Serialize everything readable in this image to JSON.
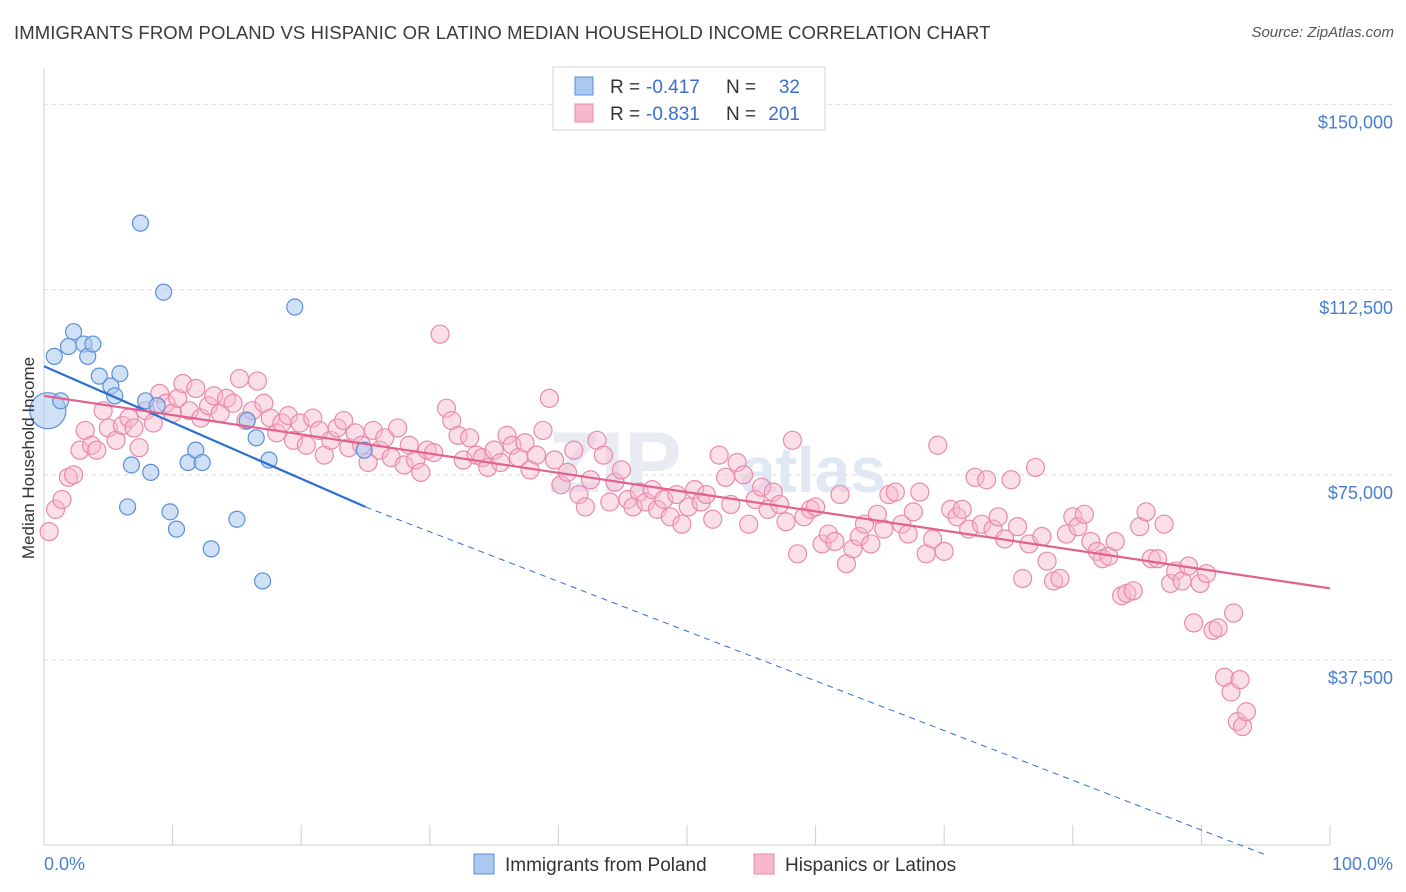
{
  "title": "IMMIGRANTS FROM POLAND VS HISPANIC OR LATINO MEDIAN HOUSEHOLD INCOME CORRELATION CHART",
  "source": "Source: ZipAtlas.com",
  "watermark": {
    "zip": "ZIP",
    "atlas": "atlas"
  },
  "legend_box": {
    "rows": [
      {
        "r_label": "R =",
        "r_value": "-0.417",
        "n_label": "N =",
        "n_value": "32"
      },
      {
        "r_label": "R =",
        "r_value": "-0.831",
        "n_label": "N =",
        "n_value": "201"
      }
    ]
  },
  "bottom_legend": [
    "Immigrants from Poland",
    "Hispanics or Latinos"
  ],
  "colors": {
    "poland_fill": "#aac8f0",
    "poland_stroke": "#5b8fd6",
    "poland_line": "#2a6fd4",
    "hispanic_fill": "#f7b8cc",
    "hispanic_stroke": "#e98aab",
    "hispanic_line": "#e0628f",
    "grid": "#dcdcdc",
    "axis_label": "#4a7fcf"
  },
  "chart_data": {
    "type": "scatter",
    "title": "IMMIGRANTS FROM POLAND VS HISPANIC OR LATINO MEDIAN HOUSEHOLD INCOME CORRELATION CHART",
    "xlabel": "",
    "ylabel": "Median Household Income",
    "xlim": [
      0,
      100
    ],
    "ylim": [
      0,
      155000
    ],
    "x_tick_labels": [
      "0.0%",
      "100.0%"
    ],
    "y_ticks": [
      37500,
      75000,
      112500,
      150000
    ],
    "y_tick_labels": [
      "$37,500",
      "$75,000",
      "$112,500",
      "$150,000"
    ],
    "grid": true,
    "series": [
      {
        "name": "Immigrants from Poland",
        "r": -0.417,
        "n": 32,
        "trend": {
          "x0": 0,
          "y0": 97000,
          "x1": 25,
          "y1": 68500,
          "dash_to_x": 95,
          "dash_to_y": -2000
        },
        "points": [
          [
            0.3,
            88000,
            18
          ],
          [
            0.8,
            99000,
            8
          ],
          [
            1.3,
            90000,
            8
          ],
          [
            1.9,
            101000,
            8
          ],
          [
            2.3,
            104000,
            8
          ],
          [
            3.1,
            101500,
            8
          ],
          [
            3.4,
            99000,
            8
          ],
          [
            3.8,
            101500,
            8
          ],
          [
            4.3,
            95000,
            8
          ],
          [
            5.2,
            93000,
            8
          ],
          [
            5.5,
            91000,
            8
          ],
          [
            5.9,
            95500,
            8
          ],
          [
            6.5,
            68500,
            8
          ],
          [
            6.8,
            77000,
            8
          ],
          [
            7.5,
            126000,
            8
          ],
          [
            7.9,
            90000,
            8
          ],
          [
            8.3,
            75500,
            8
          ],
          [
            8.8,
            89000,
            8
          ],
          [
            9.3,
            112000,
            8
          ],
          [
            9.8,
            67500,
            8
          ],
          [
            10.3,
            64000,
            8
          ],
          [
            11.2,
            77500,
            8
          ],
          [
            11.8,
            80000,
            8
          ],
          [
            12.3,
            77500,
            8
          ],
          [
            13.0,
            60000,
            8
          ],
          [
            15.0,
            66000,
            8
          ],
          [
            15.8,
            86000,
            8
          ],
          [
            16.5,
            82500,
            8
          ],
          [
            17.0,
            53500,
            8
          ],
          [
            17.5,
            78000,
            8
          ],
          [
            19.5,
            109000,
            8
          ],
          [
            24.9,
            80000,
            8
          ]
        ]
      },
      {
        "name": "Hispanics or Latinos",
        "r": -0.831,
        "n": 201,
        "trend": {
          "x0": 0,
          "y0": 91000,
          "x1": 100,
          "y1": 52000
        },
        "points": [
          [
            0.4,
            63500
          ],
          [
            0.9,
            68000
          ],
          [
            1.4,
            70000
          ],
          [
            1.9,
            74500
          ],
          [
            2.3,
            75000
          ],
          [
            2.8,
            80000
          ],
          [
            3.2,
            84000
          ],
          [
            3.7,
            81000
          ],
          [
            4.1,
            80000
          ],
          [
            4.6,
            88000
          ],
          [
            5.0,
            84500
          ],
          [
            5.6,
            82000
          ],
          [
            6.1,
            85000
          ],
          [
            6.6,
            86500
          ],
          [
            7.0,
            84500
          ],
          [
            7.4,
            80500
          ],
          [
            7.9,
            88000
          ],
          [
            8.5,
            85500
          ],
          [
            9.0,
            91500
          ],
          [
            9.5,
            89500
          ],
          [
            10.0,
            87500
          ],
          [
            10.4,
            90500
          ],
          [
            10.8,
            93500
          ],
          [
            11.3,
            88000
          ],
          [
            11.8,
            92500
          ],
          [
            12.2,
            86500
          ],
          [
            12.8,
            89000
          ],
          [
            13.2,
            91000
          ],
          [
            13.7,
            87500
          ],
          [
            14.2,
            90500
          ],
          [
            14.7,
            89500
          ],
          [
            15.2,
            94500
          ],
          [
            15.7,
            86000
          ],
          [
            16.2,
            88000
          ],
          [
            16.6,
            94000
          ],
          [
            17.1,
            89500
          ],
          [
            17.6,
            86500
          ],
          [
            18.1,
            83500
          ],
          [
            18.5,
            85500
          ],
          [
            19.0,
            87000
          ],
          [
            19.4,
            82000
          ],
          [
            19.9,
            85500
          ],
          [
            20.4,
            81000
          ],
          [
            20.9,
            86500
          ],
          [
            21.4,
            84000
          ],
          [
            21.8,
            79000
          ],
          [
            22.3,
            82000
          ],
          [
            22.8,
            84500
          ],
          [
            23.3,
            86000
          ],
          [
            23.7,
            80500
          ],
          [
            24.2,
            83500
          ],
          [
            24.7,
            81000
          ],
          [
            25.2,
            77500
          ],
          [
            25.6,
            84000
          ],
          [
            26.1,
            80000
          ],
          [
            26.5,
            82500
          ],
          [
            27.0,
            78500
          ],
          [
            27.5,
            84500
          ],
          [
            28.0,
            77000
          ],
          [
            28.4,
            81000
          ],
          [
            28.9,
            78000
          ],
          [
            29.3,
            75500
          ],
          [
            29.8,
            80000
          ],
          [
            30.3,
            79500
          ],
          [
            30.8,
            103500
          ],
          [
            31.3,
            88500
          ],
          [
            31.7,
            86000
          ],
          [
            32.2,
            83000
          ],
          [
            32.6,
            78000
          ],
          [
            33.1,
            82500
          ],
          [
            33.6,
            79000
          ],
          [
            34.1,
            78500
          ],
          [
            34.5,
            76500
          ],
          [
            35.0,
            80000
          ],
          [
            35.5,
            77500
          ],
          [
            36.0,
            83000
          ],
          [
            36.4,
            81000
          ],
          [
            36.9,
            78500
          ],
          [
            37.4,
            81500
          ],
          [
            37.8,
            76000
          ],
          [
            38.3,
            79000
          ],
          [
            38.8,
            84000
          ],
          [
            39.3,
            90500
          ],
          [
            39.7,
            78000
          ],
          [
            40.2,
            73000
          ],
          [
            40.7,
            75500
          ],
          [
            41.2,
            80000
          ],
          [
            41.6,
            71000
          ],
          [
            42.1,
            68500
          ],
          [
            42.5,
            74000
          ],
          [
            43.0,
            82000
          ],
          [
            43.5,
            79000
          ],
          [
            44.0,
            69500
          ],
          [
            44.4,
            73500
          ],
          [
            44.9,
            76000
          ],
          [
            45.4,
            70000
          ],
          [
            45.8,
            68500
          ],
          [
            46.3,
            71500
          ],
          [
            46.8,
            69500
          ],
          [
            47.3,
            72000
          ],
          [
            47.7,
            68000
          ],
          [
            48.2,
            70000
          ],
          [
            48.7,
            66500
          ],
          [
            49.2,
            71000
          ],
          [
            49.6,
            65000
          ],
          [
            50.1,
            68500
          ],
          [
            50.6,
            72000
          ],
          [
            51.1,
            69500
          ],
          [
            51.5,
            71000
          ],
          [
            52.0,
            66000
          ],
          [
            52.5,
            79000
          ],
          [
            53.0,
            74500
          ],
          [
            53.4,
            69000
          ],
          [
            53.9,
            77500
          ],
          [
            54.4,
            75000
          ],
          [
            54.8,
            65000
          ],
          [
            55.3,
            70000
          ],
          [
            55.8,
            72500
          ],
          [
            56.3,
            68000
          ],
          [
            56.7,
            71500
          ],
          [
            57.2,
            69000
          ],
          [
            57.7,
            65500
          ],
          [
            58.2,
            82000
          ],
          [
            58.6,
            59000
          ],
          [
            59.1,
            66500
          ],
          [
            59.6,
            68000
          ],
          [
            60.0,
            68500
          ],
          [
            60.5,
            61000
          ],
          [
            61.0,
            63000
          ],
          [
            61.5,
            61500
          ],
          [
            61.9,
            71000
          ],
          [
            62.4,
            57000
          ],
          [
            62.9,
            60000
          ],
          [
            63.4,
            62500
          ],
          [
            63.8,
            65000
          ],
          [
            64.3,
            61000
          ],
          [
            64.8,
            67000
          ],
          [
            65.3,
            64000
          ],
          [
            65.7,
            71000
          ],
          [
            66.2,
            71500
          ],
          [
            66.7,
            65000
          ],
          [
            67.2,
            63000
          ],
          [
            67.6,
            67500
          ],
          [
            68.1,
            71500
          ],
          [
            68.6,
            59000
          ],
          [
            69.1,
            62000
          ],
          [
            69.5,
            81000
          ],
          [
            70.0,
            59500
          ],
          [
            70.5,
            68000
          ],
          [
            71.0,
            66500
          ],
          [
            71.4,
            68000
          ],
          [
            71.9,
            64000
          ],
          [
            72.4,
            74500
          ],
          [
            72.9,
            65000
          ],
          [
            73.3,
            74000
          ],
          [
            73.8,
            64000
          ],
          [
            74.2,
            66500
          ],
          [
            74.7,
            62000
          ],
          [
            75.2,
            74000
          ],
          [
            75.7,
            64500
          ],
          [
            76.1,
            54000
          ],
          [
            76.6,
            61000
          ],
          [
            77.1,
            76500
          ],
          [
            77.6,
            62500
          ],
          [
            78.0,
            57500
          ],
          [
            78.5,
            53500
          ],
          [
            79.0,
            54000
          ],
          [
            79.5,
            63000
          ],
          [
            80.0,
            66500
          ],
          [
            80.4,
            64500
          ],
          [
            80.9,
            67000
          ],
          [
            81.4,
            61500
          ],
          [
            81.9,
            59500
          ],
          [
            82.3,
            58000
          ],
          [
            82.8,
            58500
          ],
          [
            83.3,
            61500
          ],
          [
            83.8,
            50500
          ],
          [
            84.2,
            51000
          ],
          [
            84.7,
            51500
          ],
          [
            85.2,
            64500
          ],
          [
            85.7,
            67500
          ],
          [
            86.1,
            58000
          ],
          [
            86.6,
            58000
          ],
          [
            87.1,
            65000
          ],
          [
            87.6,
            53000
          ],
          [
            88.0,
            55500
          ],
          [
            88.5,
            53500
          ],
          [
            89.0,
            56500
          ],
          [
            89.4,
            45000
          ],
          [
            89.9,
            53000
          ],
          [
            90.4,
            55000
          ],
          [
            90.9,
            43500
          ],
          [
            91.3,
            44000
          ],
          [
            91.8,
            34000
          ],
          [
            92.3,
            31000
          ],
          [
            92.8,
            25000
          ],
          [
            93.2,
            24000
          ],
          [
            93.5,
            27000
          ],
          [
            93.0,
            33500
          ],
          [
            92.5,
            47000
          ]
        ]
      }
    ]
  }
}
